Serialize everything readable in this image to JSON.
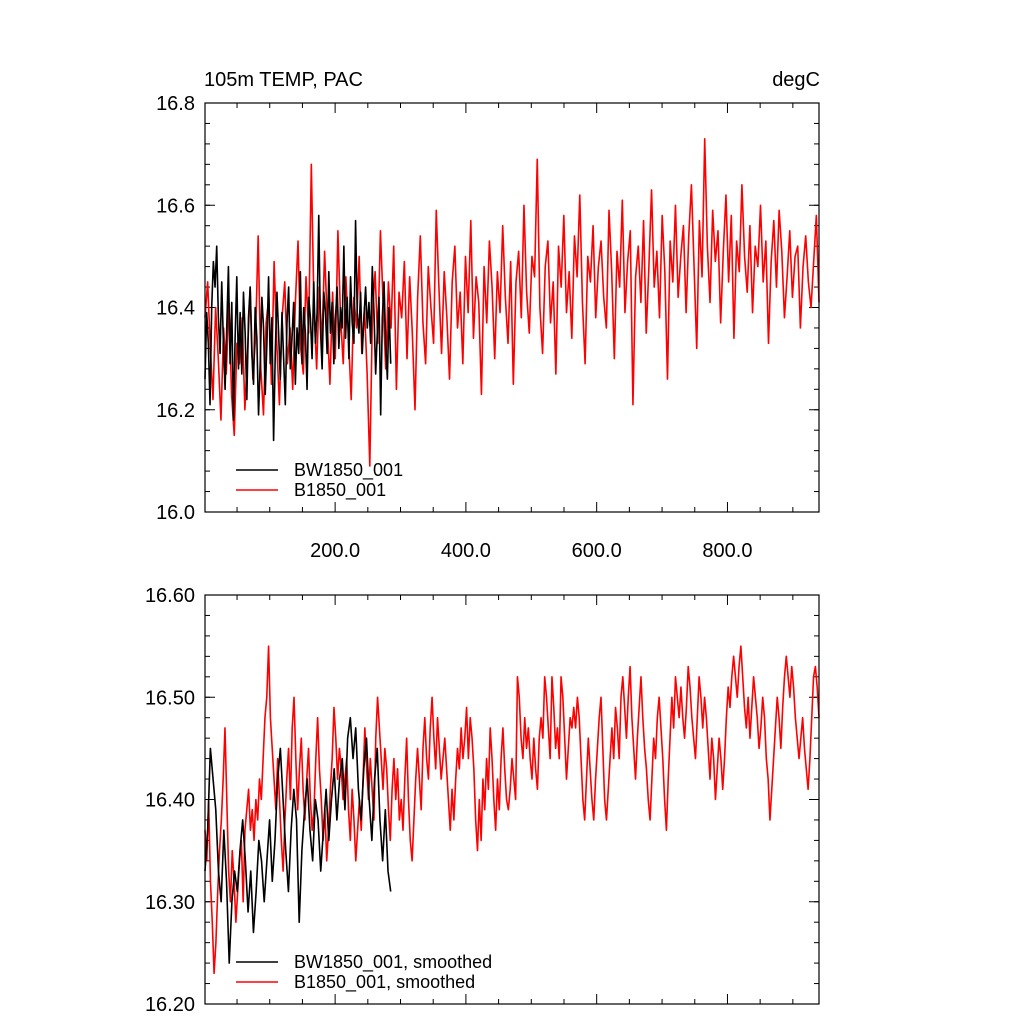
{
  "chart_data": [
    {
      "type": "line",
      "title_left": "105m TEMP, PAC",
      "title_right": "degC",
      "xlim": [
        1,
        940
      ],
      "ylim": [
        16.0,
        16.8
      ],
      "x_ticks": [
        200,
        400,
        600,
        800
      ],
      "x_tick_labels": [
        "200.0",
        "400.0",
        "600.0",
        "800.0"
      ],
      "y_ticks": [
        16.0,
        16.2,
        16.4,
        16.6,
        16.8
      ],
      "y_tick_labels": [
        "16.0",
        "16.2",
        "16.4",
        "16.6",
        "16.8"
      ],
      "legend_position": "bottom-left",
      "series": [
        {
          "name": "BW1850_001",
          "color": "#000000",
          "x_range": [
            1,
            285
          ],
          "values": [
            16.26,
            16.39,
            16.33,
            16.21,
            16.4,
            16.49,
            16.44,
            16.52,
            16.38,
            16.31,
            16.45,
            16.33,
            16.24,
            16.36,
            16.48,
            16.29,
            16.41,
            16.18,
            16.34,
            16.46,
            16.28,
            16.39,
            16.27,
            16.43,
            16.35,
            16.22,
            16.38,
            16.44,
            16.31,
            16.25,
            16.4,
            16.34,
            16.19,
            16.29,
            16.42,
            16.36,
            16.23,
            16.33,
            16.46,
            16.29,
            16.38,
            16.14,
            16.31,
            16.43,
            16.35,
            16.26,
            16.39,
            16.3,
            16.21,
            16.37,
            16.44,
            16.28,
            16.34,
            16.41,
            16.25,
            16.36,
            16.31,
            16.47,
            16.29,
            16.4,
            16.35,
            16.24,
            16.42,
            16.38,
            16.3,
            16.45,
            16.33,
            16.39,
            16.58,
            16.36,
            16.28,
            16.43,
            16.39,
            16.31,
            16.47,
            16.35,
            16.41,
            16.29,
            16.38,
            16.44,
            16.32,
            16.4,
            16.36,
            16.52,
            16.34,
            16.42,
            16.3,
            16.46,
            16.37,
            16.33,
            16.57,
            16.39,
            16.35,
            16.43,
            16.31,
            16.38,
            16.44,
            16.36,
            16.41,
            16.33,
            16.48,
            16.39,
            16.27,
            16.35,
            16.42,
            16.19,
            16.38,
            16.45,
            16.33,
            16.26,
            16.4,
            16.29
          ]
        },
        {
          "name": "B1850_001",
          "color": "#ff0000",
          "x_range": [
            1,
            940
          ],
          "values": [
            16.38,
            16.45,
            16.32,
            16.22,
            16.4,
            16.3,
            16.18,
            16.36,
            16.27,
            16.41,
            16.23,
            16.15,
            16.33,
            16.29,
            16.38,
            16.2,
            16.31,
            16.44,
            16.26,
            16.34,
            16.54,
            16.28,
            16.19,
            16.37,
            16.42,
            16.25,
            16.49,
            16.33,
            16.21,
            16.38,
            16.45,
            16.29,
            16.36,
            16.24,
            16.41,
            16.53,
            16.32,
            16.27,
            16.46,
            16.35,
            16.68,
            16.4,
            16.28,
            16.44,
            16.33,
            16.51,
            16.37,
            16.25,
            16.43,
            16.3,
            16.55,
            16.38,
            16.29,
            16.46,
            16.34,
            16.22,
            16.42,
            16.36,
            16.5,
            16.31,
            16.4,
            16.27,
            16.09,
            16.39,
            16.47,
            16.33,
            16.55,
            16.41,
            16.28,
            16.45,
            16.36,
            16.52,
            16.24,
            16.43,
            16.38,
            16.49,
            16.3,
            16.46,
            16.35,
            16.2,
            16.42,
            16.54,
            16.37,
            16.29,
            16.48,
            16.4,
            16.33,
            16.59,
            16.44,
            16.31,
            16.47,
            16.38,
            16.26,
            16.45,
            16.52,
            16.36,
            16.43,
            16.29,
            16.5,
            16.39,
            16.57,
            16.34,
            16.46,
            16.41,
            16.23,
            16.48,
            16.37,
            16.53,
            16.44,
            16.3,
            16.47,
            16.39,
            16.56,
            16.42,
            16.33,
            16.49,
            16.25,
            16.45,
            16.51,
            16.38,
            16.6,
            16.43,
            16.35,
            16.5,
            16.46,
            16.69,
            16.4,
            16.31,
            16.48,
            16.53,
            16.37,
            16.45,
            16.27,
            16.52,
            16.44,
            16.58,
            16.39,
            16.47,
            16.34,
            16.54,
            16.46,
            16.62,
            16.41,
            16.29,
            16.5,
            16.45,
            16.56,
            16.38,
            16.48,
            16.53,
            16.42,
            16.36,
            16.59,
            16.47,
            16.3,
            16.51,
            16.44,
            16.61,
            16.39,
            16.49,
            16.55,
            16.21,
            16.46,
            16.52,
            16.41,
            16.57,
            16.35,
            16.48,
            16.63,
            16.44,
            16.51,
            16.38,
            16.58,
            16.47,
            16.26,
            16.53,
            16.45,
            16.6,
            16.42,
            16.5,
            16.56,
            16.39,
            16.54,
            16.64,
            16.48,
            16.32,
            16.57,
            16.46,
            16.73,
            16.52,
            16.41,
            16.59,
            16.49,
            16.55,
            16.37,
            16.51,
            16.62,
            16.45,
            16.58,
            16.34,
            16.53,
            16.47,
            16.64,
            16.5,
            16.43,
            16.56,
            16.39,
            16.52,
            16.48,
            16.6,
            16.45,
            16.53,
            16.33,
            16.49,
            16.57,
            16.44,
            16.59,
            16.51,
            16.38,
            16.46,
            16.55,
            16.42,
            16.5,
            16.52,
            16.36,
            16.48,
            16.54,
            16.45,
            16.4,
            16.49,
            16.58,
            16.41
          ]
        }
      ]
    },
    {
      "type": "line",
      "xlim": [
        1,
        940
      ],
      "ylim": [
        16.2,
        16.6
      ],
      "x_ticks": [
        200,
        400,
        600,
        800
      ],
      "y_ticks": [
        16.2,
        16.3,
        16.4,
        16.5,
        16.6
      ],
      "y_tick_labels": [
        "16.20",
        "16.30",
        "16.40",
        "16.50",
        "16.60"
      ],
      "legend_position": "bottom-left",
      "series": [
        {
          "name": "BW1850_001, smoothed",
          "color": "#000000",
          "x_range": [
            1,
            285
          ],
          "values": [
            16.33,
            16.37,
            16.45,
            16.42,
            16.39,
            16.33,
            16.3,
            16.37,
            16.32,
            16.24,
            16.3,
            16.33,
            16.31,
            16.35,
            16.38,
            16.34,
            16.29,
            16.33,
            16.27,
            16.31,
            16.36,
            16.34,
            16.3,
            16.34,
            16.38,
            16.32,
            16.36,
            16.42,
            16.45,
            16.4,
            16.35,
            16.31,
            16.37,
            16.41,
            16.38,
            16.28,
            16.35,
            16.39,
            16.42,
            16.37,
            16.34,
            16.4,
            16.38,
            16.33,
            16.37,
            16.41,
            16.36,
            16.4,
            16.43,
            16.38,
            16.42,
            16.44,
            16.39,
            16.46,
            16.48,
            16.44,
            16.47,
            16.41,
            16.38,
            16.43,
            16.46,
            16.4,
            16.36,
            16.42,
            16.45,
            16.38,
            16.34,
            16.39,
            16.33,
            16.31
          ]
        },
        {
          "name": "B1850_001, smoothed",
          "color": "#ff0000",
          "x_range": [
            1,
            940
          ],
          "values": [
            16.37,
            16.34,
            16.4,
            16.32,
            16.28,
            16.23,
            16.26,
            16.31,
            16.35,
            16.38,
            16.42,
            16.47,
            16.4,
            16.33,
            16.3,
            16.35,
            16.32,
            16.28,
            16.31,
            16.34,
            16.36,
            16.3,
            16.37,
            16.39,
            16.41,
            16.37,
            16.39,
            16.36,
            16.4,
            16.38,
            16.42,
            16.4,
            16.44,
            16.48,
            16.5,
            16.55,
            16.48,
            16.45,
            16.42,
            16.39,
            16.44,
            16.4,
            16.36,
            16.33,
            16.38,
            16.42,
            16.45,
            16.4,
            16.47,
            16.5,
            16.44,
            16.39,
            16.43,
            16.46,
            16.41,
            16.38,
            16.42,
            16.45,
            16.4,
            16.37,
            16.39,
            16.44,
            16.48,
            16.43,
            16.4,
            16.36,
            16.39,
            16.34,
            16.37,
            16.41,
            16.44,
            16.49,
            16.46,
            16.42,
            16.45,
            16.43,
            16.4,
            16.42,
            16.44,
            16.39,
            16.36,
            16.41,
            16.38,
            16.34,
            16.37,
            16.4,
            16.37,
            16.42,
            16.47,
            16.43,
            16.4,
            16.44,
            16.41,
            16.38,
            16.46,
            16.5,
            16.47,
            16.44,
            16.41,
            16.45,
            16.43,
            16.39,
            16.36,
            16.41,
            16.44,
            16.4,
            16.43,
            16.38,
            16.4,
            16.37,
            16.42,
            16.46,
            16.4,
            16.36,
            16.34,
            16.38,
            16.42,
            16.45,
            16.42,
            16.39,
            16.45,
            16.48,
            16.44,
            16.42,
            16.47,
            16.5,
            16.46,
            16.43,
            16.48,
            16.45,
            16.42,
            16.44,
            16.46,
            16.43,
            16.4,
            16.37,
            16.41,
            16.38,
            16.42,
            16.45,
            16.43,
            16.47,
            16.44,
            16.46,
            16.49,
            16.44,
            16.48,
            16.46,
            16.43,
            16.38,
            16.35,
            16.4,
            16.36,
            16.42,
            16.39,
            16.44,
            16.41,
            16.47,
            16.44,
            16.4,
            16.37,
            16.42,
            16.39,
            16.44,
            16.47,
            16.43,
            16.4,
            16.39,
            16.41,
            16.44,
            16.42,
            16.4,
            16.52,
            16.5,
            16.46,
            16.44,
            16.48,
            16.45,
            16.47,
            16.44,
            16.42,
            16.46,
            16.43,
            16.41,
            16.46,
            16.48,
            16.46,
            16.52,
            16.5,
            16.47,
            16.44,
            16.52,
            16.49,
            16.45,
            16.47,
            16.44,
            16.52,
            16.5,
            16.46,
            16.42,
            16.45,
            16.48,
            16.47,
            16.49,
            16.47,
            16.5,
            16.48,
            16.44,
            16.4,
            16.38,
            16.42,
            16.46,
            16.43,
            16.4,
            16.38,
            16.42,
            16.45,
            16.48,
            16.5,
            16.45,
            16.4,
            16.38,
            16.41,
            16.44,
            16.47,
            16.44,
            16.49,
            16.47,
            16.44,
            16.5,
            16.52,
            16.49,
            16.46,
            16.5,
            16.53,
            16.48,
            16.45,
            16.42,
            16.46,
            16.49,
            16.52,
            16.48,
            16.45,
            16.43,
            16.4,
            16.38,
            16.42,
            16.46,
            16.44,
            16.48,
            16.5,
            16.47,
            16.44,
            16.4,
            16.37,
            16.42,
            16.46,
            16.5,
            16.47,
            16.52,
            16.5,
            16.48,
            16.51,
            16.48,
            16.46,
            16.49,
            16.53,
            16.51,
            16.48,
            16.46,
            16.44,
            16.48,
            16.52,
            16.5,
            16.47,
            16.5,
            16.48,
            16.45,
            16.42,
            16.46,
            16.44,
            16.4,
            16.43,
            16.46,
            16.44,
            16.41,
            16.44,
            16.48,
            16.51,
            16.49,
            16.52,
            16.54,
            16.52,
            16.5,
            16.53,
            16.55,
            16.52,
            16.49,
            16.47,
            16.5,
            16.46,
            16.49,
            16.52,
            16.5,
            16.48,
            16.45,
            16.47,
            16.5,
            16.48,
            16.44,
            16.42,
            16.38,
            16.41,
            16.44,
            16.47,
            16.5,
            16.48,
            16.45,
            16.49,
            16.52,
            16.54,
            16.52,
            16.5,
            16.53,
            16.51,
            16.48,
            16.46,
            16.44,
            16.46,
            16.48,
            16.45,
            16.43,
            16.41,
            16.44,
            16.48,
            16.52,
            16.53,
            16.51,
            16.48
          ]
        }
      ]
    }
  ]
}
